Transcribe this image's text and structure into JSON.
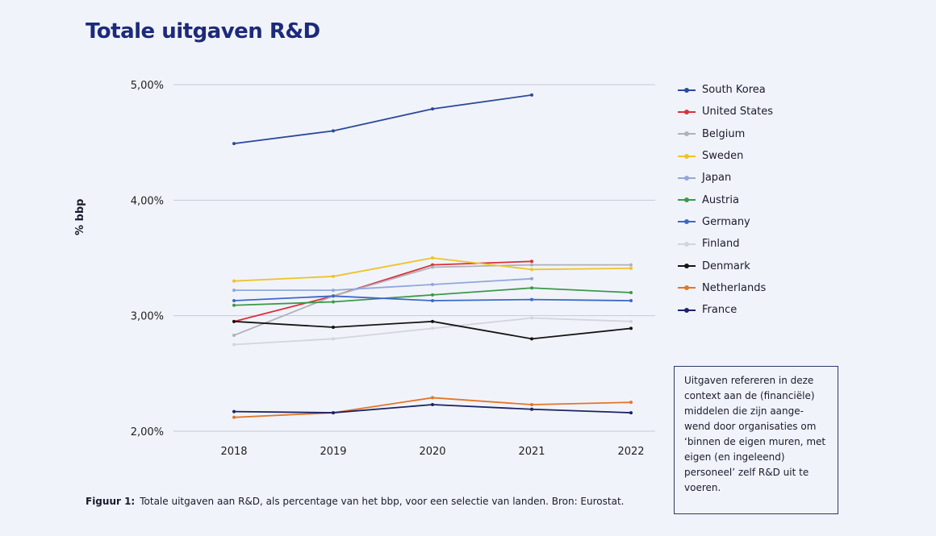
{
  "title": "Totale uitgaven R&D",
  "caption": {
    "label": "Figuur 1:",
    "text": "Totale uitgaven aan R&D, als percentage van het bbp, voor een selectie van landen. Bron: Eurostat."
  },
  "note": "Uitgaven refereren in deze context aan de (financiële) middelen die zijn aange-wend door organisaties om ‘binnen de eigen muren, met eigen (en ingeleend) personeel’ zelf R&D uit te voeren.",
  "chart_data": {
    "type": "line",
    "title": "Totale uitgaven R&D",
    "xlabel": "",
    "ylabel": "% bbp",
    "x": [
      "2018",
      "2019",
      "2020",
      "2021",
      "2022"
    ],
    "ylim": [
      2.0,
      5.0
    ],
    "yticks": [
      "2,00%",
      "3,00%",
      "4,00%",
      "5,00%"
    ],
    "ytick_values": [
      2,
      3,
      4,
      5
    ],
    "grid": "horizontal",
    "legend": "right",
    "series": [
      {
        "name": "South Korea",
        "color": "#2a4a9a",
        "values": [
          4.49,
          4.6,
          4.79,
          4.91,
          null
        ]
      },
      {
        "name": "United States",
        "color": "#d9303a",
        "values": [
          2.95,
          3.17,
          3.44,
          3.47,
          null
        ]
      },
      {
        "name": "Belgium",
        "color": "#b0b2b8",
        "values": [
          2.83,
          3.17,
          3.42,
          3.44,
          3.44
        ]
      },
      {
        "name": "Sweden",
        "color": "#ecc42a",
        "values": [
          3.3,
          3.34,
          3.5,
          3.4,
          3.41
        ]
      },
      {
        "name": "Japan",
        "color": "#8fa8dc",
        "values": [
          3.22,
          3.22,
          3.27,
          3.32,
          null
        ]
      },
      {
        "name": "Austria",
        "color": "#3a9a4a",
        "values": [
          3.09,
          3.12,
          3.18,
          3.24,
          3.2
        ]
      },
      {
        "name": "Germany",
        "color": "#3a6ac8",
        "values": [
          3.13,
          3.17,
          3.13,
          3.14,
          3.13
        ]
      },
      {
        "name": "Finland",
        "color": "#d3d5dc",
        "values": [
          2.75,
          2.8,
          2.89,
          2.98,
          2.95
        ]
      },
      {
        "name": "Denmark",
        "color": "#151515",
        "values": [
          2.95,
          2.9,
          2.95,
          2.8,
          2.89
        ]
      },
      {
        "name": "Netherlands",
        "color": "#e2762a",
        "values": [
          2.12,
          2.16,
          2.29,
          2.23,
          2.25
        ]
      },
      {
        "name": "France",
        "color": "#1a2466",
        "values": [
          2.17,
          2.16,
          2.23,
          2.19,
          2.16
        ]
      }
    ]
  }
}
